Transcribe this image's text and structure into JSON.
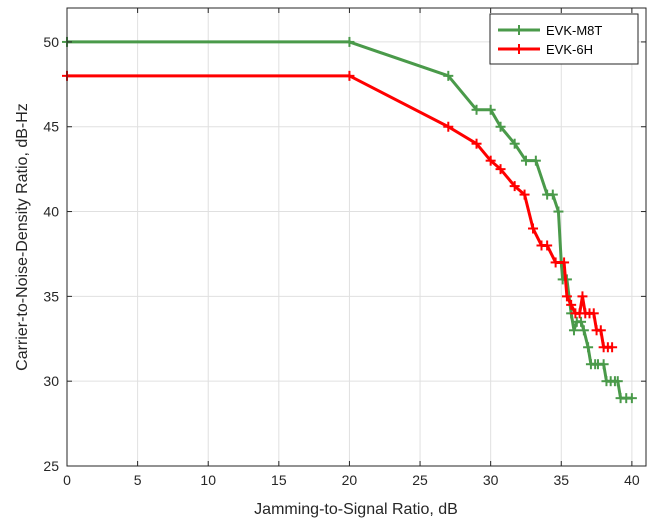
{
  "chart_data": {
    "type": "line",
    "title": "",
    "xlabel": "Jamming-to-Signal Ratio, dB",
    "ylabel": "Carrier-to-Noise-Density Ratio, dB-Hz",
    "xlim": [
      0,
      41
    ],
    "ylim": [
      25,
      52
    ],
    "xticks": [
      0,
      5,
      10,
      15,
      20,
      25,
      30,
      35,
      40
    ],
    "yticks": [
      25,
      30,
      35,
      40,
      45,
      50
    ],
    "grid": true,
    "legend_position": "top-right",
    "marker": "plus",
    "series": [
      {
        "name": "EVK-M8T",
        "color": "#4a9a4a",
        "points": [
          [
            0,
            50
          ],
          [
            20,
            50
          ],
          [
            27,
            48
          ],
          [
            29,
            46
          ],
          [
            30,
            46
          ],
          [
            30.7,
            45
          ],
          [
            31.7,
            44
          ],
          [
            32.5,
            43
          ],
          [
            33.2,
            43
          ],
          [
            34,
            41
          ],
          [
            34.4,
            41
          ],
          [
            34.8,
            40
          ],
          [
            35,
            37
          ],
          [
            35.1,
            36
          ],
          [
            35.4,
            36
          ],
          [
            35.7,
            34
          ],
          [
            35.9,
            33
          ],
          [
            36.1,
            33.5
          ],
          [
            36.4,
            33.5
          ],
          [
            36.6,
            33
          ],
          [
            36.9,
            32
          ],
          [
            37.1,
            31
          ],
          [
            37.4,
            31
          ],
          [
            37.6,
            31
          ],
          [
            38,
            31
          ],
          [
            38.2,
            30
          ],
          [
            38.5,
            30
          ],
          [
            38.8,
            30
          ],
          [
            39,
            30
          ],
          [
            39.2,
            29
          ],
          [
            39.6,
            29
          ],
          [
            40,
            29
          ]
        ]
      },
      {
        "name": "EVK-6H",
        "color": "#ff0000",
        "points": [
          [
            0,
            48
          ],
          [
            20,
            48
          ],
          [
            27,
            45
          ],
          [
            29,
            44
          ],
          [
            30,
            43
          ],
          [
            30.7,
            42.5
          ],
          [
            31.7,
            41.5
          ],
          [
            32.4,
            41
          ],
          [
            33,
            39
          ],
          [
            33.6,
            38
          ],
          [
            34,
            38
          ],
          [
            34.6,
            37
          ],
          [
            35.2,
            37
          ],
          [
            35.4,
            35
          ],
          [
            35.7,
            34.5
          ],
          [
            36,
            34
          ],
          [
            36.3,
            34
          ],
          [
            36.5,
            35
          ],
          [
            36.7,
            34
          ],
          [
            37,
            34
          ],
          [
            37.3,
            34
          ],
          [
            37.5,
            33
          ],
          [
            37.8,
            33
          ],
          [
            38,
            32
          ],
          [
            38.3,
            32
          ],
          [
            38.6,
            32
          ]
        ]
      }
    ]
  }
}
